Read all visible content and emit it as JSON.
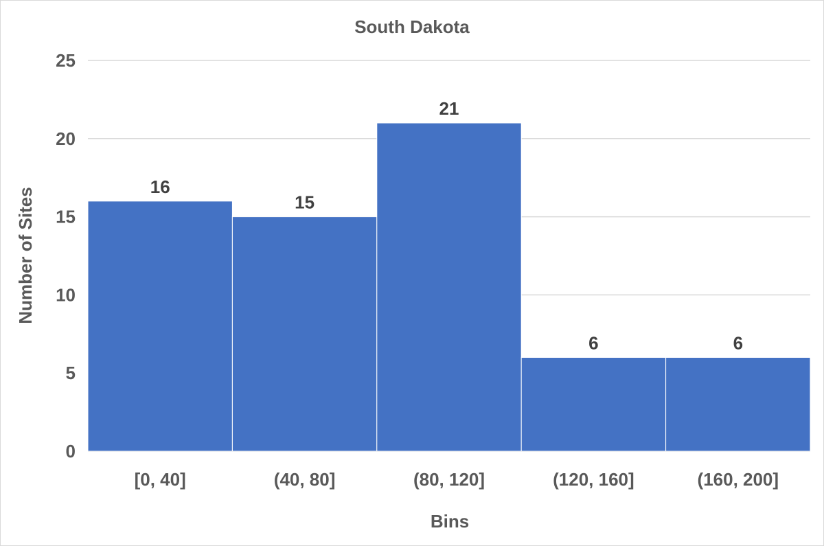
{
  "chart_data": {
    "type": "bar",
    "title": "South Dakota",
    "xlabel": "Bins",
    "ylabel": "Number of Sites",
    "categories": [
      "[0, 40]",
      "(40, 80]",
      "(80, 120]",
      "(120, 160]",
      "(160, 200]"
    ],
    "values": [
      16,
      15,
      21,
      6,
      6
    ],
    "ylim": [
      0,
      25
    ],
    "yticks": [
      "0",
      "5",
      "10",
      "15",
      "20",
      "25"
    ],
    "grid": true,
    "legend": "none",
    "bar_color": "#4472c4",
    "gap_width": 0
  }
}
